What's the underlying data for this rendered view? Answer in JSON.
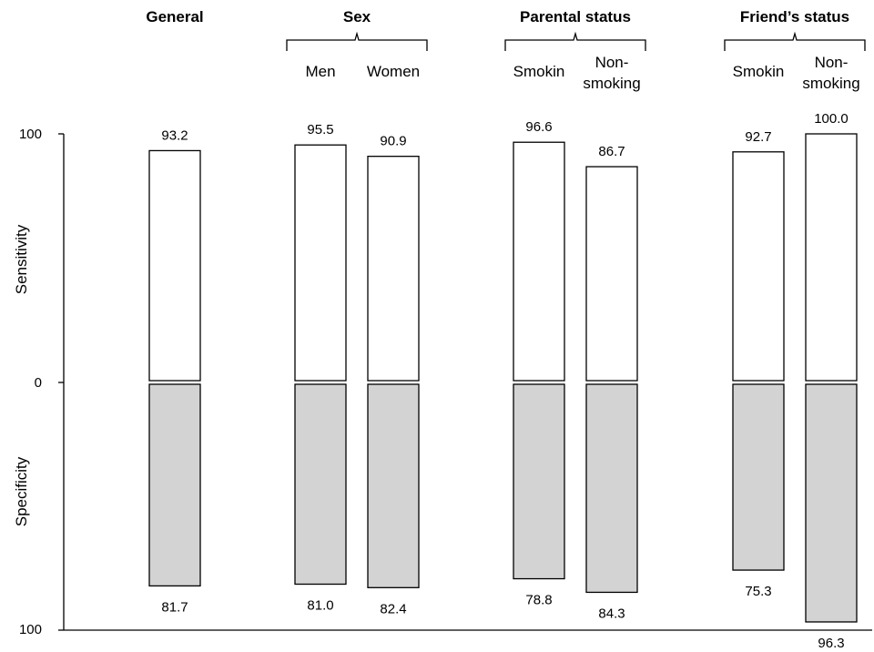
{
  "chart_data": {
    "type": "bar",
    "axis": {
      "top_tick": "100",
      "middle_tick": "0",
      "bottom_tick": "100",
      "upper_label": "Sensitivity",
      "lower_label": "Specificity"
    },
    "groups": [
      {
        "title": "General",
        "bars": [
          {
            "label": "",
            "sensitivity": 93.2,
            "specificity": 81.7,
            "sens_text": "93.2",
            "spec_text": "81.7"
          }
        ]
      },
      {
        "title": "Sex",
        "bars": [
          {
            "label": "Men",
            "sensitivity": 95.5,
            "specificity": 81.0,
            "sens_text": "95.5",
            "spec_text": "81.0"
          },
          {
            "label": "Women",
            "sensitivity": 90.9,
            "specificity": 82.4,
            "sens_text": "90.9",
            "spec_text": "82.4"
          }
        ]
      },
      {
        "title": "Parental status",
        "bars": [
          {
            "label": "Smokin",
            "sensitivity": 96.6,
            "specificity": 78.8,
            "sens_text": "96.6",
            "spec_text": "78.8"
          },
          {
            "label": "Non-\nsmoking",
            "sensitivity": 86.7,
            "specificity": 84.3,
            "sens_text": "86.7",
            "spec_text": "84.3"
          }
        ]
      },
      {
        "title": "Friend’s status",
        "bars": [
          {
            "label": "Smokin",
            "sensitivity": 92.7,
            "specificity": 75.3,
            "sens_text": "92.7",
            "spec_text": "75.3"
          },
          {
            "label": "Non-\nsmoking",
            "sensitivity": 100.0,
            "specificity": 96.3,
            "sens_text": "100.0",
            "spec_text": "96.3"
          }
        ]
      }
    ],
    "ylim": [
      0,
      100
    ],
    "colors": {
      "sensitivity_fill": "#ffffff",
      "specificity_fill": "#d3d3d3",
      "stroke": "#000000"
    },
    "grid": false
  }
}
